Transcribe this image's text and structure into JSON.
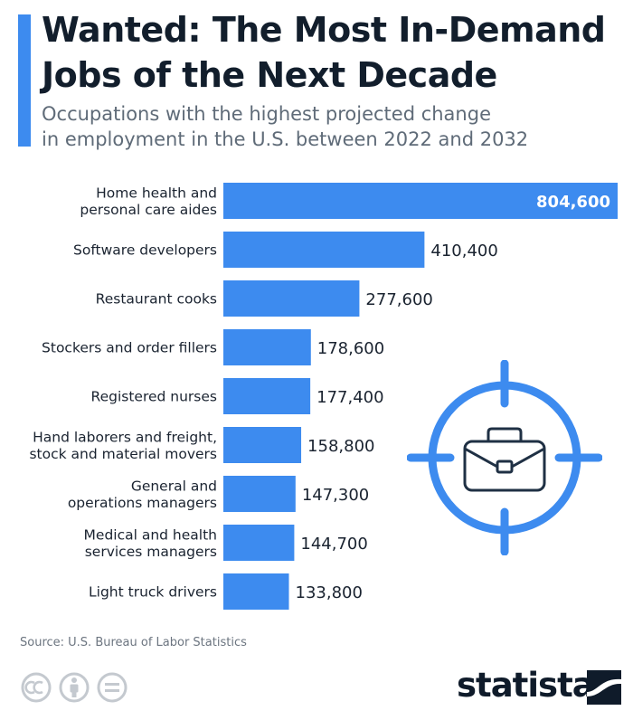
{
  "header": {
    "title_line1": "Wanted: The Most In-Demand",
    "title_line2": "Jobs of the Next Decade",
    "subtitle_line1": "Occupations with the highest projected change",
    "subtitle_line2": "in employment in the U.S. between 2022 and 2032"
  },
  "chart_data": {
    "type": "bar",
    "orientation": "horizontal",
    "categories": [
      [
        "Home health and",
        "personal care aides"
      ],
      [
        "Software developers"
      ],
      [
        "Restaurant cooks"
      ],
      [
        "Stockers and order fillers"
      ],
      [
        "Registered nurses"
      ],
      [
        "Hand laborers and freight,",
        "stock and material movers"
      ],
      [
        "General and",
        "operations managers"
      ],
      [
        "Medical and health",
        "services managers"
      ],
      [
        "Light truck drivers"
      ]
    ],
    "values": [
      804600,
      410400,
      277600,
      178600,
      177400,
      158800,
      147300,
      144700,
      133800
    ],
    "value_labels": [
      "804,600",
      "410,400",
      "277,600",
      "178,600",
      "177,400",
      "158,800",
      "147,300",
      "144,700",
      "133,800"
    ],
    "xlim": [
      0,
      804600
    ],
    "grid": false,
    "bar_color": "#3d8bef"
  },
  "footer": {
    "source": "Source: U.S. Bureau of Labor Statistics",
    "brand": "statista"
  },
  "colors": {
    "accent": "#3d8bef",
    "title": "#121e2c",
    "subtitle": "#5f6b78",
    "icon_gray": "#c4c9cf"
  },
  "icons": {
    "illustration": "target-crosshair-briefcase-icon",
    "license": [
      "cc-icon",
      "attribution-icon",
      "no-derivatives-icon"
    ],
    "brand": "statista-logo-icon"
  }
}
